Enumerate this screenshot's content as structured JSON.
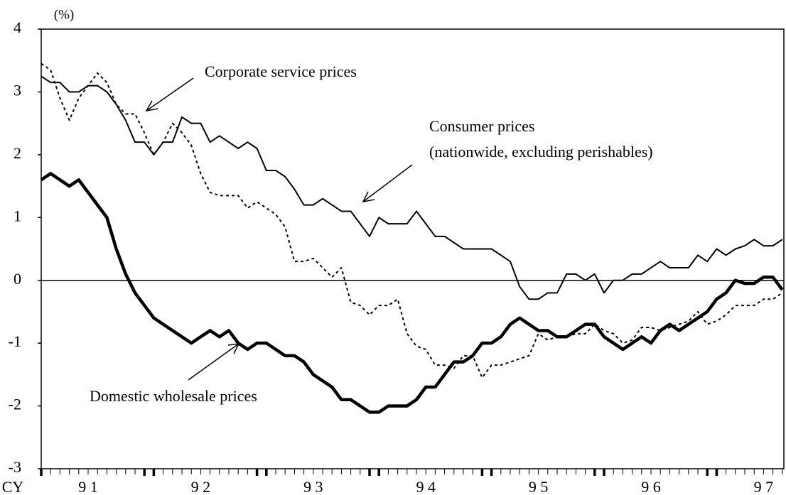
{
  "chart_data": {
    "type": "line",
    "y_label": "(%)",
    "x_label": "CY",
    "categories": [
      null,
      null,
      null,
      null,
      null,
      "9 1",
      null,
      null,
      null,
      null,
      null,
      null,
      null,
      null,
      null,
      null,
      null,
      "9 2",
      null,
      null,
      null,
      null,
      null,
      null,
      null,
      null,
      null,
      null,
      null,
      "9 3",
      null,
      null,
      null,
      null,
      null,
      null,
      null,
      null,
      null,
      null,
      null,
      "9 4",
      null,
      null,
      null,
      null,
      null,
      null,
      null,
      null,
      null,
      null,
      null,
      "9 5",
      null,
      null,
      null,
      null,
      null,
      null,
      null,
      null,
      null,
      null,
      null,
      "9 6",
      null,
      null,
      null,
      null,
      null,
      null,
      null,
      null,
      null,
      null,
      null,
      "9 7",
      null,
      null
    ],
    "series": [
      {
        "name": "Consumer prices",
        "color": "#000000",
        "values": [
          3.25,
          3.15,
          3.15,
          3.0,
          3.0,
          3.1,
          3.1,
          3.0,
          2.8,
          2.55,
          2.2,
          2.2,
          2.0,
          2.2,
          2.2,
          2.6,
          2.5,
          2.5,
          2.2,
          2.3,
          2.2,
          2.1,
          2.2,
          2.1,
          1.75,
          1.75,
          1.65,
          1.45,
          1.2,
          1.2,
          1.3,
          1.2,
          1.1,
          1.1,
          0.9,
          0.7,
          1.0,
          0.9,
          0.9,
          0.9,
          1.1,
          0.9,
          0.7,
          0.7,
          0.6,
          0.5,
          0.5,
          0.5,
          0.5,
          0.4,
          0.3,
          -0.1,
          -0.3,
          -0.3,
          -0.2,
          -0.2,
          0.1,
          0.1,
          0.0,
          0.1,
          -0.2,
          0.0,
          0.0,
          0.1,
          0.1,
          0.2,
          0.3,
          0.2,
          0.2,
          0.2,
          0.4,
          0.3,
          0.5,
          0.4,
          0.5,
          0.55,
          0.65,
          0.55,
          0.55,
          0.65
        ]
      },
      {
        "name": "Domestic wholesale prices",
        "color": "#000000",
        "values": [
          1.6,
          1.7,
          1.6,
          1.5,
          1.6,
          1.4,
          1.2,
          1.0,
          0.5,
          0.1,
          -0.2,
          -0.4,
          -0.6,
          -0.7,
          -0.8,
          -0.9,
          -1.0,
          -0.9,
          -0.8,
          -0.9,
          -0.8,
          -1.0,
          -1.1,
          -1.0,
          -1.0,
          -1.1,
          -1.2,
          -1.2,
          -1.3,
          -1.5,
          -1.6,
          -1.7,
          -1.9,
          -1.9,
          -2.0,
          -2.1,
          -2.1,
          -2.0,
          -2.0,
          -2.0,
          -1.9,
          -1.7,
          -1.7,
          -1.5,
          -1.3,
          -1.3,
          -1.2,
          -1.0,
          -1.0,
          -0.9,
          -0.7,
          -0.6,
          -0.7,
          -0.8,
          -0.8,
          -0.9,
          -0.9,
          -0.8,
          -0.7,
          -0.7,
          -0.9,
          -1.0,
          -1.1,
          -1.0,
          -0.9,
          -1.0,
          -0.8,
          -0.7,
          -0.8,
          -0.7,
          -0.6,
          -0.5,
          -0.3,
          -0.2,
          0.0,
          -0.05,
          -0.05,
          0.05,
          0.05,
          -0.15
        ]
      },
      {
        "name": "Corporate service prices",
        "color": "#000000",
        "values": [
          3.45,
          3.35,
          2.9,
          2.55,
          2.9,
          3.1,
          3.3,
          3.15,
          2.8,
          2.65,
          2.65,
          2.35,
          2.0,
          2.2,
          2.5,
          2.35,
          2.15,
          1.7,
          1.4,
          1.35,
          1.35,
          1.35,
          1.15,
          1.25,
          1.15,
          1.05,
          0.85,
          0.3,
          0.3,
          0.35,
          0.2,
          0.05,
          0.2,
          -0.35,
          -0.4,
          -0.55,
          -0.4,
          -0.4,
          -0.3,
          -0.85,
          -1.05,
          -1.1,
          -1.35,
          -1.35,
          -1.4,
          -1.2,
          -1.2,
          -1.55,
          -1.35,
          -1.35,
          -1.3,
          -1.25,
          -1.2,
          -0.85,
          -0.95,
          -0.9,
          -0.9,
          -0.85,
          -0.85,
          -0.7,
          -0.8,
          -0.85,
          -1.0,
          -0.95,
          -0.75,
          -0.75,
          -0.8,
          -0.75,
          -0.7,
          -0.65,
          -0.5,
          -0.7,
          -0.65,
          -0.55,
          -0.4,
          -0.4,
          -0.4,
          -0.3,
          -0.3,
          -0.2
        ]
      }
    ],
    "annotation": "(nationwide, excluding perishables)",
    "ylim": [
      -3,
      4
    ],
    "yticks": [
      4,
      3,
      2,
      1,
      0,
      -1,
      -2,
      -3
    ]
  }
}
